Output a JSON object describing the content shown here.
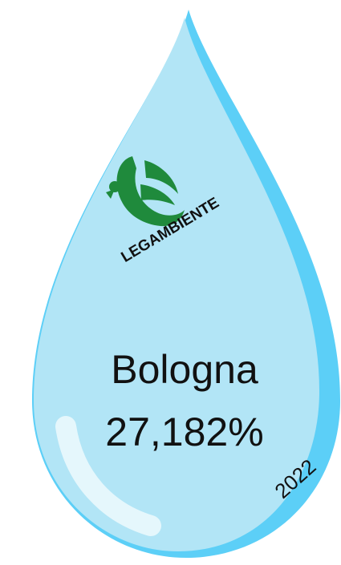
{
  "logo": {
    "label": "LEGAMBIENTE"
  },
  "city": "Bologna",
  "percentage": "27,182%",
  "year": "2022"
}
